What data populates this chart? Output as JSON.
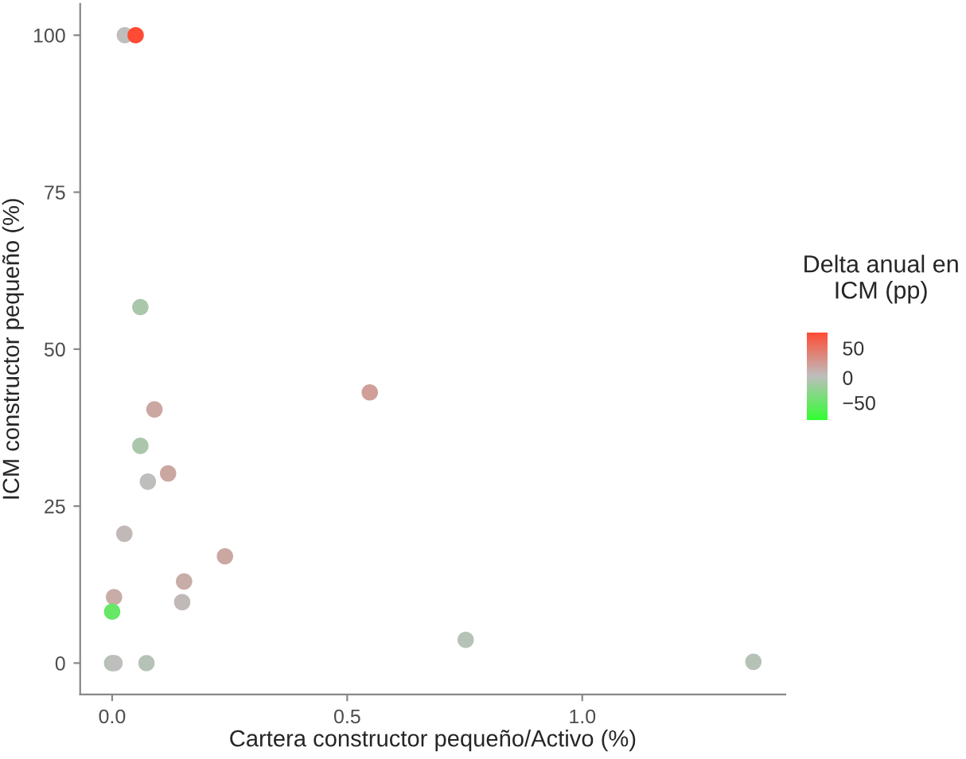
{
  "chart_data": {
    "type": "scatter",
    "xlabel": "Cartera constructor pequeño/Activo (%)",
    "ylabel": "ICM constructor pequeño (%)",
    "clabel": "Delta anual en\nICM (pp)",
    "x": [
      0.027,
      0.05,
      0.06,
      0.09,
      0.548,
      0.06,
      0.119,
      0.076,
      0.026,
      0.24,
      0.153,
      0.149,
      0.004,
      0.0,
      0.0,
      0.005,
      0.073,
      0.752,
      1.364
    ],
    "values": [
      100,
      100,
      56.7,
      40.4,
      43.1,
      34.6,
      30.2,
      28.9,
      20.6,
      17.0,
      13.0,
      9.7,
      10.5,
      8.2,
      0,
      0,
      0,
      3.7,
      0.2
    ],
    "cvalues": [
      0,
      74,
      -12,
      15,
      20,
      -12,
      15,
      0,
      3,
      15,
      12,
      3,
      12,
      -55,
      -10,
      0,
      -5,
      -5,
      -5
    ],
    "clim": [
      -87,
      74
    ],
    "cticks": [
      -50,
      0,
      50
    ],
    "xlim": [
      -0.068,
      1.432
    ],
    "ylim": [
      -5,
      105
    ],
    "xticks": [
      {
        "value": 0,
        "label": "0.0"
      },
      0.5,
      {
        "value": 1,
        "label": "1.0"
      }
    ],
    "yticks": [
      0,
      25,
      50,
      75,
      100
    ],
    "grid": false,
    "marker": "circle"
  }
}
